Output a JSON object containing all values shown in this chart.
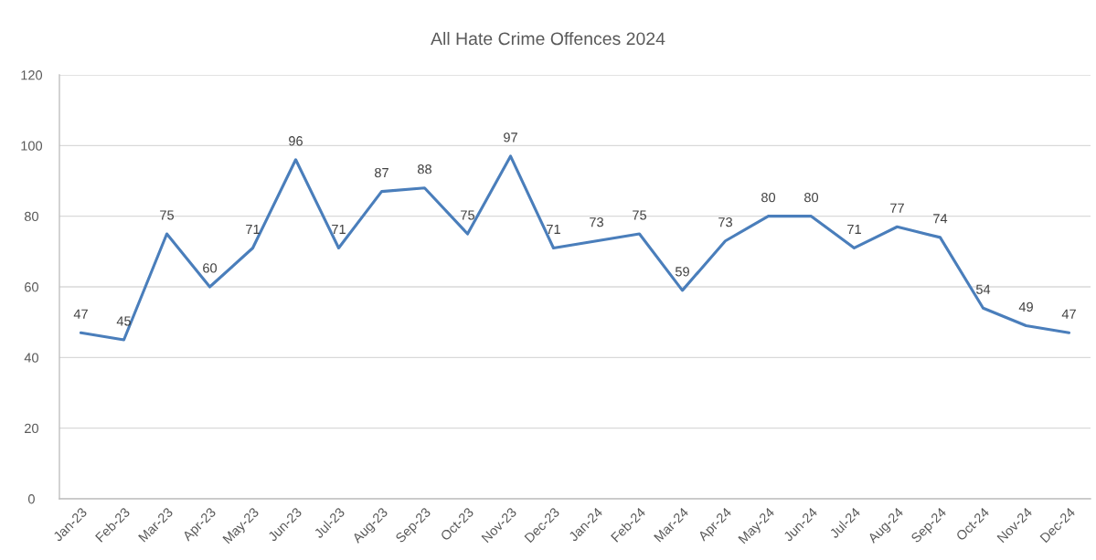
{
  "chart_data": {
    "type": "line",
    "title": "All Hate Crime Offences 2024",
    "categories": [
      "Jan-23",
      "Feb-23",
      "Mar-23",
      "Apr-23",
      "May-23",
      "Jun-23",
      "Jul-23",
      "Aug-23",
      "Sep-23",
      "Oct-23",
      "Nov-23",
      "Dec-23",
      "Jan-24",
      "Feb-24",
      "Mar-24",
      "Apr-24",
      "May-24",
      "Jun-24",
      "Jul-24",
      "Aug-24",
      "Sep-24",
      "Oct-24",
      "Nov-24",
      "Dec-24"
    ],
    "series": [
      {
        "color": "#4a7ebb",
        "values": [
          47,
          45,
          75,
          60,
          71,
          96,
          71,
          87,
          88,
          75,
          97,
          71,
          73,
          75,
          59,
          73,
          80,
          80,
          71,
          77,
          74,
          54,
          49,
          47
        ]
      }
    ],
    "ylim": [
      0,
      120
    ],
    "yticks": [
      0,
      20,
      40,
      60,
      80,
      100,
      120
    ],
    "grid": "y",
    "data_labels": true
  }
}
